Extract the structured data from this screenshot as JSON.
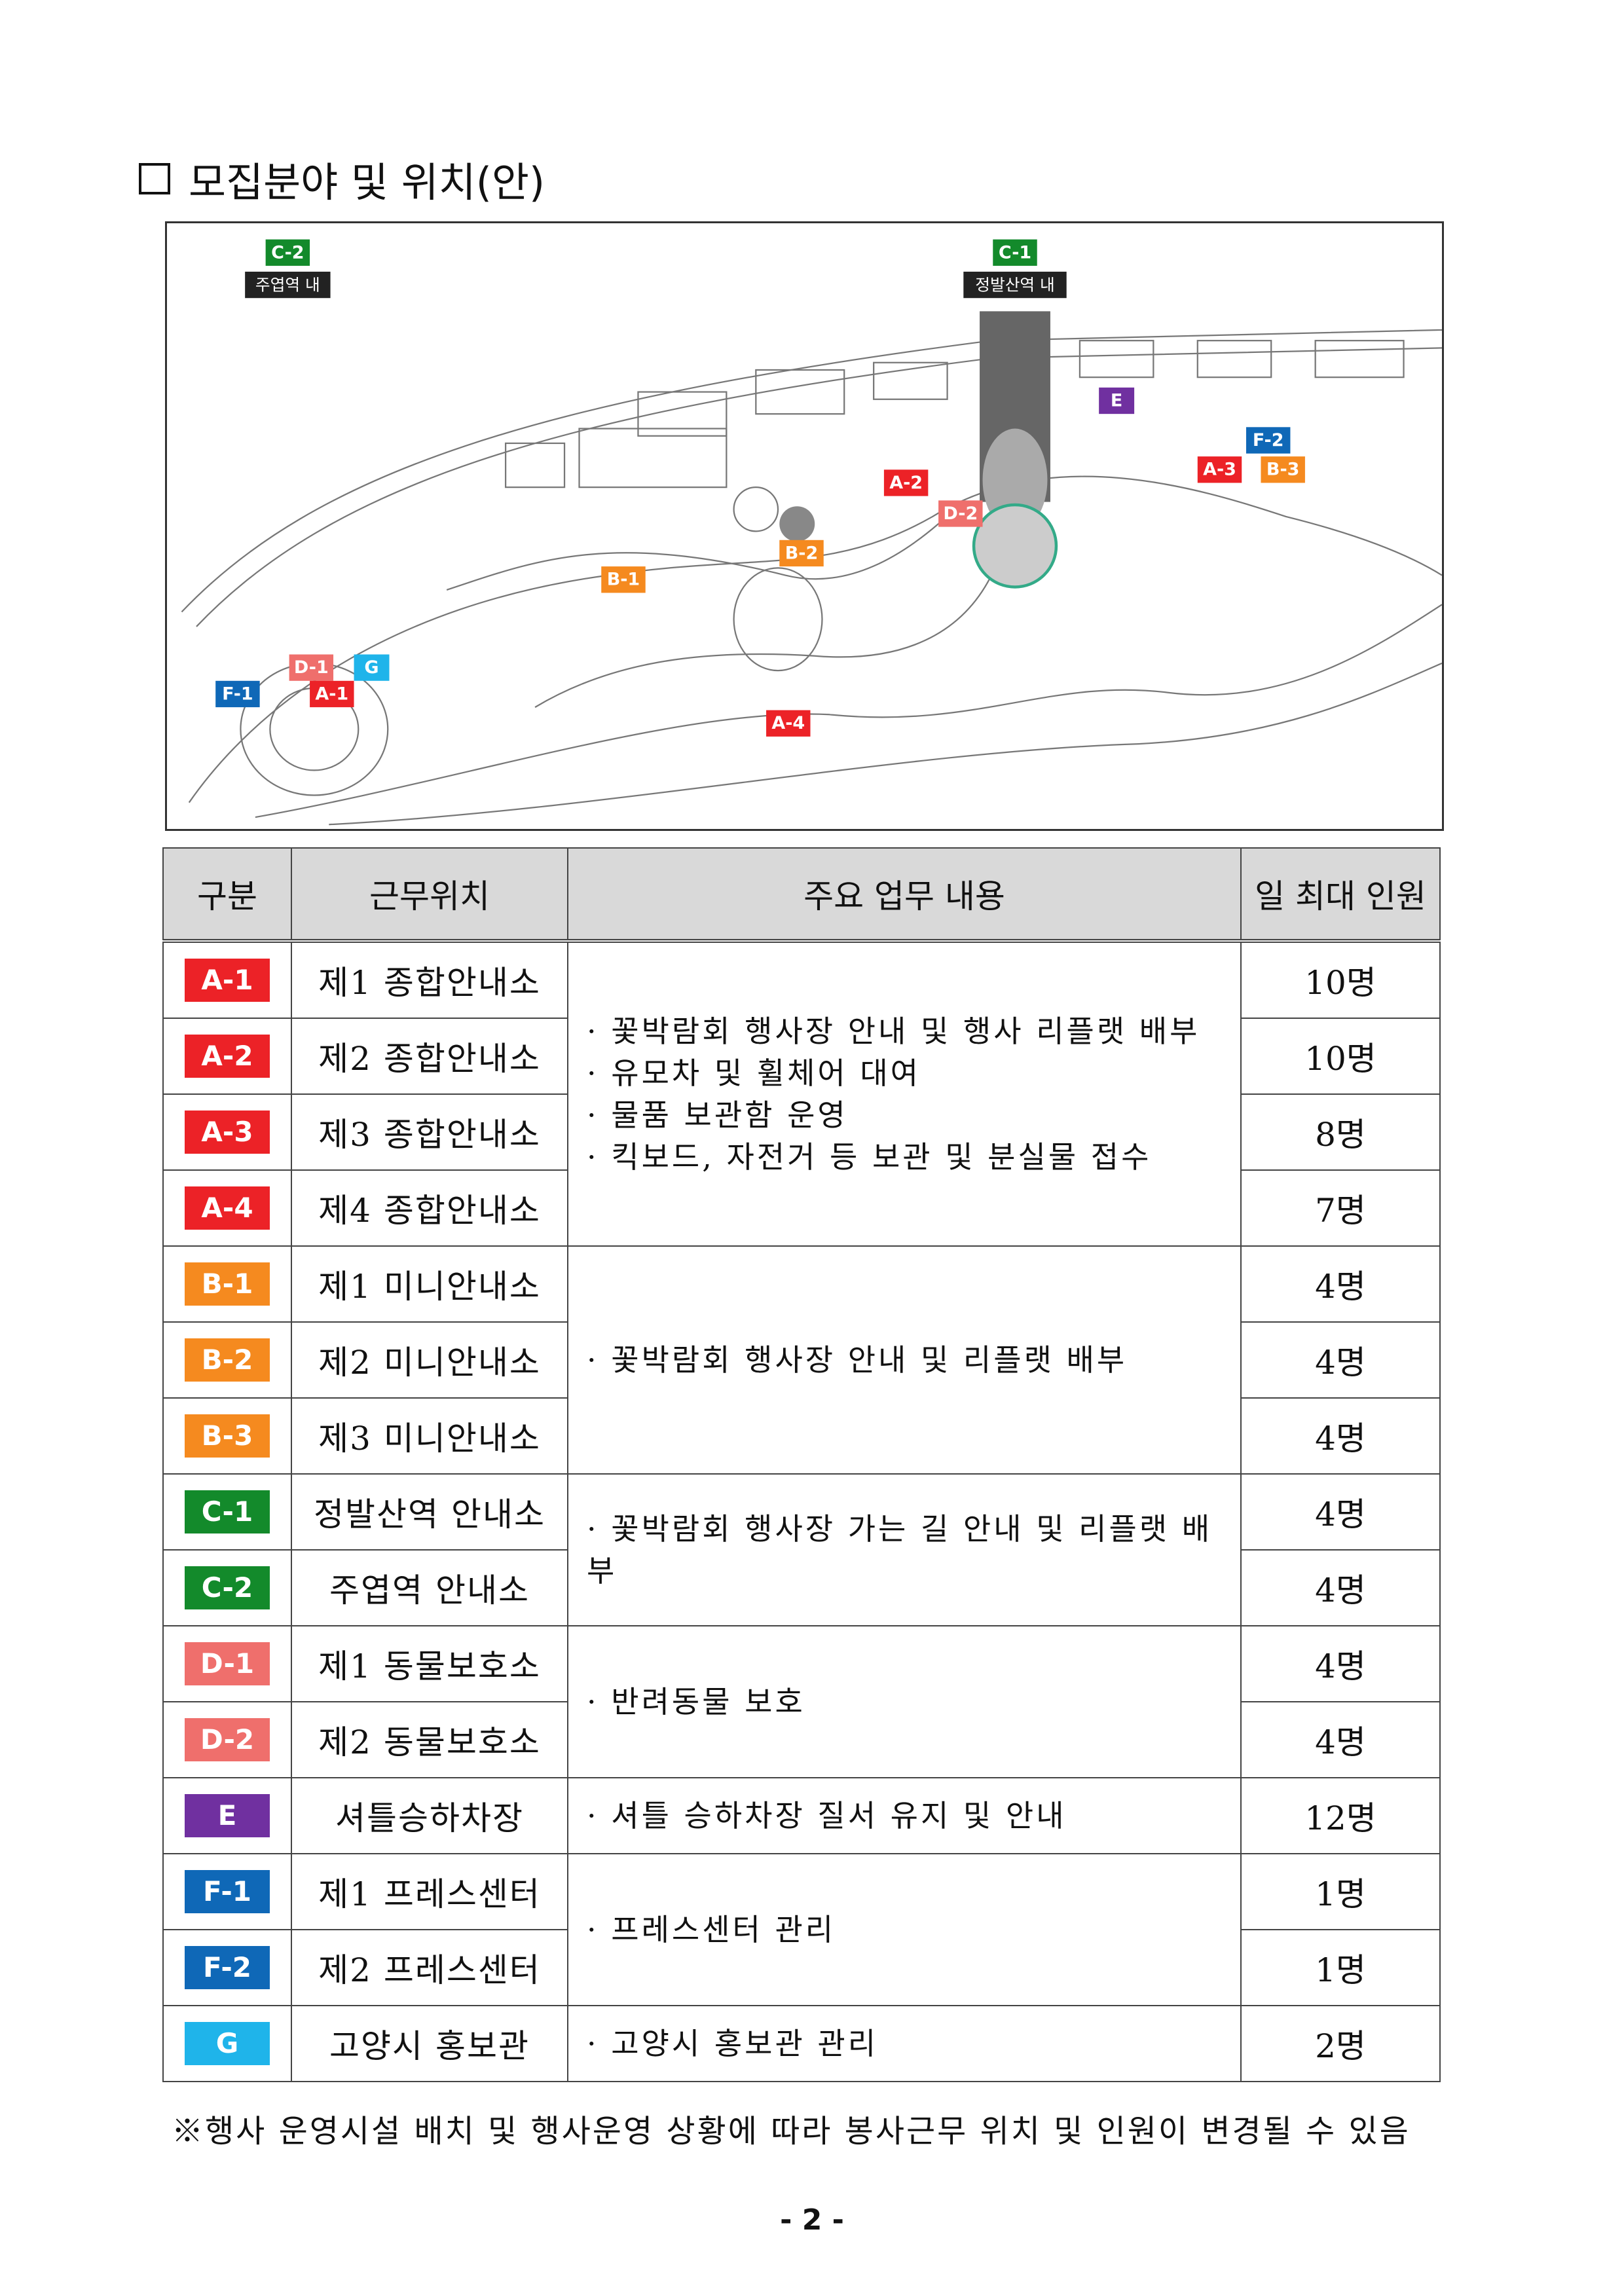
{
  "section_title": "모집분야 및 위치(안)",
  "colors": {
    "A": "#ec2227",
    "B": "#f58a1f",
    "C": "#138a2b",
    "D": "#ef6f6c",
    "E": "#7030a0",
    "F": "#0f68b7",
    "G": "#1fb4ea"
  },
  "map": {
    "labels": [
      {
        "code": "C-2",
        "group": "C"
      },
      {
        "code": "C-1",
        "group": "C"
      },
      {
        "code": "E",
        "group": "E"
      },
      {
        "code": "F-2",
        "group": "F"
      },
      {
        "code": "A-3",
        "group": "A"
      },
      {
        "code": "B-3",
        "group": "B"
      },
      {
        "code": "A-2",
        "group": "A"
      },
      {
        "code": "D-2",
        "group": "D"
      },
      {
        "code": "B-2",
        "group": "B"
      },
      {
        "code": "B-1",
        "group": "B"
      },
      {
        "code": "D-1",
        "group": "D"
      },
      {
        "code": "G",
        "group": "G"
      },
      {
        "code": "F-1",
        "group": "F"
      },
      {
        "code": "A-1",
        "group": "A"
      },
      {
        "code": "A-4",
        "group": "A"
      }
    ],
    "station_labels": [
      "주엽역 내",
      "정발산역 내"
    ]
  },
  "table": {
    "headers": [
      "구분",
      "근무위치",
      "주요 업무 내용",
      "일 최대 인원"
    ],
    "rows": [
      {
        "code": "A-1",
        "group": "A",
        "location": "제1 종합안내소",
        "count": "10명"
      },
      {
        "code": "A-2",
        "group": "A",
        "location": "제2 종합안내소",
        "count": "10명"
      },
      {
        "code": "A-3",
        "group": "A",
        "location": "제3 종합안내소",
        "count": "8명"
      },
      {
        "code": "A-4",
        "group": "A",
        "location": "제4 종합안내소",
        "count": "7명"
      },
      {
        "code": "B-1",
        "group": "B",
        "location": "제1 미니안내소",
        "count": "4명"
      },
      {
        "code": "B-2",
        "group": "B",
        "location": "제2 미니안내소",
        "count": "4명"
      },
      {
        "code": "B-3",
        "group": "B",
        "location": "제3 미니안내소",
        "count": "4명"
      },
      {
        "code": "C-1",
        "group": "C",
        "location": "정발산역 안내소",
        "count": "4명"
      },
      {
        "code": "C-2",
        "group": "C",
        "location": "주엽역 안내소",
        "count": "4명"
      },
      {
        "code": "D-1",
        "group": "D",
        "location": "제1 동물보호소",
        "count": "4명"
      },
      {
        "code": "D-2",
        "group": "D",
        "location": "제2 동물보호소",
        "count": "4명"
      },
      {
        "code": "E",
        "group": "E",
        "location": "셔틀승하차장",
        "count": "12명"
      },
      {
        "code": "F-1",
        "group": "F",
        "location": "제1 프레스센터",
        "count": "1명"
      },
      {
        "code": "F-2",
        "group": "F",
        "location": "제2 프레스센터",
        "count": "1명"
      },
      {
        "code": "G",
        "group": "G",
        "location": "고양시 홍보관",
        "count": "2명"
      }
    ],
    "duties": {
      "A": [
        "· 꽃박람회 행사장 안내 및 행사 리플랫 배부",
        "· 유모차 및 휠체어 대여",
        "· 물품 보관함 운영",
        "· 킥보드, 자전거 등 보관 및 분실물 접수"
      ],
      "B": [
        "· 꽃박람회 행사장 안내 및 리플랫 배부"
      ],
      "C": [
        "· 꽃박람회 행사장 가는 길 안내 및 리플랫 배부"
      ],
      "D": [
        "· 반려동물 보호"
      ],
      "E": [
        "· 셔틀 승하차장 질서 유지 및 안내"
      ],
      "F": [
        "· 프레스센터 관리"
      ],
      "G": [
        "· 고양시 홍보관 관리"
      ]
    }
  },
  "footnote": "※행사 운영시설 배치 및 행사운영 상황에 따라 봉사근무 위치 및 인원이 변경될 수 있음",
  "page_number": "- 2 -"
}
